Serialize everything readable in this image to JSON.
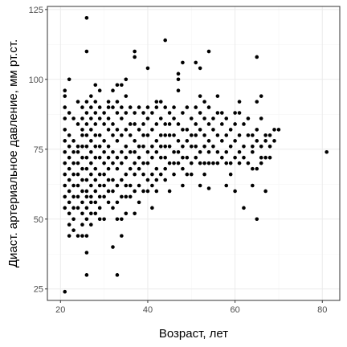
{
  "chart_data": {
    "type": "scatter",
    "xlabel": "Возраст, лет",
    "ylabel": "Диаст. артериальное давление, мм рт.ст.",
    "xlim": [
      17.0,
      84.0
    ],
    "ylim": [
      20.9,
      126.1
    ],
    "x_ticks": [
      20,
      40,
      60,
      80
    ],
    "x_tick_labels": [
      "20",
      "40",
      "60",
      "80"
    ],
    "y_ticks": [
      25,
      50,
      75,
      100,
      125
    ],
    "y_tick_labels": [
      "25",
      "50",
      "75",
      "100",
      "125"
    ],
    "grid": "on",
    "point_color": "#000000",
    "panel_border_color": "#333333",
    "points": [
      [
        26,
        122
      ],
      [
        44,
        114
      ],
      [
        26,
        110
      ],
      [
        37,
        110
      ],
      [
        54,
        110
      ],
      [
        37,
        108
      ],
      [
        65,
        108
      ],
      [
        40,
        104
      ],
      [
        51,
        106
      ],
      [
        52,
        104
      ],
      [
        48,
        106
      ],
      [
        47,
        102
      ],
      [
        47,
        100
      ],
      [
        22,
        100
      ],
      [
        28,
        98
      ],
      [
        33,
        98
      ],
      [
        34,
        98
      ],
      [
        35,
        100
      ],
      [
        47,
        96
      ],
      [
        21,
        96
      ],
      [
        24,
        92
      ],
      [
        27,
        94
      ],
      [
        29,
        96
      ],
      [
        32,
        96
      ],
      [
        35,
        94
      ],
      [
        31,
        90
      ],
      [
        33,
        92
      ],
      [
        42,
        92
      ],
      [
        43,
        92
      ],
      [
        52,
        94
      ],
      [
        53,
        92
      ],
      [
        56,
        94
      ],
      [
        61,
        92
      ],
      [
        65,
        92
      ],
      [
        66,
        94
      ],
      [
        81,
        74
      ],
      [
        70,
        82
      ],
      [
        69,
        82
      ],
      [
        68,
        80
      ],
      [
        67,
        78
      ],
      [
        67,
        72
      ],
      [
        66,
        70
      ],
      [
        65,
        68
      ],
      [
        64,
        62
      ],
      [
        67,
        60
      ],
      [
        62,
        54
      ],
      [
        65,
        50
      ],
      [
        60,
        60
      ],
      [
        54,
        61
      ],
      [
        45,
        60
      ],
      [
        48,
        62
      ],
      [
        58,
        62
      ],
      [
        33,
        50
      ],
      [
        34,
        50
      ],
      [
        34,
        44
      ],
      [
        32,
        40
      ],
      [
        26,
        38
      ],
      [
        26,
        30
      ],
      [
        33,
        30
      ],
      [
        21,
        24
      ],
      [
        22,
        44
      ],
      [
        24,
        44
      ],
      [
        25,
        44
      ],
      [
        26,
        44
      ],
      [
        27,
        48
      ],
      [
        29,
        50
      ],
      [
        30,
        50
      ],
      [
        51,
        72
      ],
      [
        51,
        76
      ],
      [
        53,
        76
      ],
      [
        54,
        78
      ],
      [
        56,
        70
      ],
      [
        58,
        70
      ],
      [
        59,
        66
      ],
      [
        60,
        78
      ],
      [
        61,
        74
      ],
      [
        62,
        72
      ],
      [
        63,
        80
      ],
      [
        64,
        76
      ],
      [
        61,
        88
      ],
      [
        57,
        88
      ],
      [
        55,
        86
      ],
      [
        46,
        70
      ],
      [
        47,
        74
      ],
      [
        49,
        66
      ],
      [
        50,
        80
      ],
      [
        44,
        76
      ],
      [
        45,
        84
      ],
      [
        43,
        80
      ],
      [
        42,
        74
      ],
      [
        48,
        82
      ],
      [
        37,
        70
      ],
      [
        38,
        76
      ],
      [
        39,
        80
      ],
      [
        40,
        74
      ],
      [
        41,
        66
      ],
      [
        39,
        60
      ],
      [
        36,
        62
      ],
      [
        34,
        64
      ],
      [
        38,
        56
      ],
      [
        41,
        54
      ],
      [
        35,
        58
      ],
      [
        35,
        52
      ],
      [
        37,
        52
      ],
      [
        44,
        68
      ],
      [
        46,
        66
      ],
      [
        52,
        62
      ],
      [
        42,
        60
      ],
      [
        40,
        64
      ],
      [
        31,
        60
      ],
      [
        29,
        58
      ],
      [
        27,
        56
      ],
      [
        33,
        56
      ],
      [
        32,
        54
      ],
      [
        30,
        70
      ],
      [
        29,
        76
      ],
      [
        28,
        80
      ],
      [
        27,
        66
      ],
      [
        26,
        60
      ],
      [
        21,
        90
      ],
      [
        22,
        88
      ],
      [
        23,
        86
      ],
      [
        24,
        84
      ],
      [
        25,
        82
      ],
      [
        21,
        82
      ],
      [
        22,
        80
      ],
      [
        23,
        78
      ],
      [
        24,
        76
      ],
      [
        21,
        78
      ],
      [
        22,
        76
      ],
      [
        23,
        74
      ],
      [
        21,
        74
      ],
      [
        24,
        74
      ],
      [
        22,
        72
      ],
      [
        23,
        70
      ],
      [
        21,
        70
      ],
      [
        24,
        70
      ],
      [
        22,
        68
      ],
      [
        23,
        66
      ],
      [
        21,
        66
      ],
      [
        24,
        66
      ],
      [
        22,
        64
      ],
      [
        23,
        62
      ],
      [
        21,
        62
      ],
      [
        24,
        62
      ],
      [
        22,
        60
      ],
      [
        23,
        58
      ],
      [
        21,
        58
      ],
      [
        24,
        58
      ],
      [
        22,
        56
      ],
      [
        23,
        54
      ],
      [
        21,
        54
      ],
      [
        24,
        54
      ],
      [
        22,
        52
      ],
      [
        23,
        50
      ],
      [
        22,
        48
      ],
      [
        23,
        46
      ],
      [
        21,
        86
      ],
      [
        21,
        94
      ],
      [
        25,
        90
      ],
      [
        25,
        86
      ],
      [
        25,
        80
      ],
      [
        25,
        76
      ],
      [
        25,
        72
      ],
      [
        25,
        68
      ],
      [
        25,
        64
      ],
      [
        25,
        60
      ],
      [
        25,
        56
      ],
      [
        25,
        52
      ],
      [
        25,
        48
      ],
      [
        26,
        92
      ],
      [
        26,
        88
      ],
      [
        26,
        84
      ],
      [
        26,
        80
      ],
      [
        26,
        76
      ],
      [
        26,
        72
      ],
      [
        26,
        68
      ],
      [
        26,
        64
      ],
      [
        26,
        58
      ],
      [
        26,
        54
      ],
      [
        26,
        50
      ],
      [
        27,
        90
      ],
      [
        27,
        86
      ],
      [
        27,
        82
      ],
      [
        27,
        78
      ],
      [
        27,
        74
      ],
      [
        27,
        70
      ],
      [
        27,
        62
      ],
      [
        27,
        58
      ],
      [
        27,
        52
      ],
      [
        28,
        92
      ],
      [
        28,
        88
      ],
      [
        28,
        84
      ],
      [
        28,
        76
      ],
      [
        28,
        72
      ],
      [
        28,
        68
      ],
      [
        28,
        64
      ],
      [
        28,
        60
      ],
      [
        28,
        56
      ],
      [
        28,
        52
      ],
      [
        29,
        90
      ],
      [
        29,
        86
      ],
      [
        29,
        80
      ],
      [
        29,
        72
      ],
      [
        29,
        66
      ],
      [
        29,
        62
      ],
      [
        29,
        54
      ],
      [
        30,
        88
      ],
      [
        30,
        84
      ],
      [
        30,
        78
      ],
      [
        30,
        74
      ],
      [
        30,
        66
      ],
      [
        30,
        62
      ],
      [
        30,
        58
      ],
      [
        31,
        92
      ],
      [
        31,
        86
      ],
      [
        31,
        82
      ],
      [
        31,
        76
      ],
      [
        31,
        72
      ],
      [
        31,
        68
      ],
      [
        31,
        64
      ],
      [
        31,
        56
      ],
      [
        32,
        90
      ],
      [
        32,
        84
      ],
      [
        32,
        80
      ],
      [
        32,
        74
      ],
      [
        32,
        70
      ],
      [
        32,
        64
      ],
      [
        32,
        60
      ],
      [
        33,
        88
      ],
      [
        33,
        82
      ],
      [
        33,
        78
      ],
      [
        33,
        72
      ],
      [
        33,
        68
      ],
      [
        33,
        62
      ],
      [
        34,
        90
      ],
      [
        34,
        86
      ],
      [
        34,
        80
      ],
      [
        34,
        74
      ],
      [
        34,
        70
      ],
      [
        34,
        58
      ],
      [
        35,
        88
      ],
      [
        35,
        82
      ],
      [
        35,
        76
      ],
      [
        35,
        72
      ],
      [
        35,
        66
      ],
      [
        35,
        62
      ],
      [
        36,
        90
      ],
      [
        36,
        84
      ],
      [
        36,
        80
      ],
      [
        36,
        74
      ],
      [
        36,
        68
      ],
      [
        36,
        58
      ],
      [
        37,
        88
      ],
      [
        37,
        84
      ],
      [
        37,
        78
      ],
      [
        37,
        74
      ],
      [
        37,
        66
      ],
      [
        37,
        60
      ],
      [
        38,
        90
      ],
      [
        38,
        82
      ],
      [
        38,
        72
      ],
      [
        38,
        68
      ],
      [
        38,
        62
      ],
      [
        39,
        88
      ],
      [
        39,
        84
      ],
      [
        39,
        76
      ],
      [
        39,
        70
      ],
      [
        39,
        66
      ],
      [
        40,
        90
      ],
      [
        40,
        86
      ],
      [
        40,
        80
      ],
      [
        40,
        70
      ],
      [
        40,
        60
      ],
      [
        41,
        88
      ],
      [
        41,
        82
      ],
      [
        41,
        76
      ],
      [
        41,
        72
      ],
      [
        41,
        62
      ],
      [
        42,
        90
      ],
      [
        42,
        84
      ],
      [
        42,
        78
      ],
      [
        42,
        68
      ],
      [
        42,
        64
      ],
      [
        43,
        86
      ],
      [
        43,
        76
      ],
      [
        43,
        72
      ],
      [
        43,
        66
      ],
      [
        44,
        90
      ],
      [
        44,
        84
      ],
      [
        44,
        80
      ],
      [
        44,
        72
      ],
      [
        44,
        64
      ],
      [
        45,
        88
      ],
      [
        45,
        80
      ],
      [
        45,
        76
      ],
      [
        45,
        70
      ],
      [
        46,
        90
      ],
      [
        46,
        86
      ],
      [
        46,
        80
      ],
      [
        46,
        74
      ],
      [
        47,
        84
      ],
      [
        47,
        78
      ],
      [
        47,
        70
      ],
      [
        48,
        88
      ],
      [
        48,
        76
      ],
      [
        48,
        72
      ],
      [
        48,
        68
      ],
      [
        49,
        90
      ],
      [
        49,
        82
      ],
      [
        49,
        78
      ],
      [
        49,
        72
      ],
      [
        50,
        86
      ],
      [
        50,
        76
      ],
      [
        50,
        70
      ],
      [
        50,
        66
      ],
      [
        51,
        90
      ],
      [
        51,
        84
      ],
      [
        51,
        80
      ],
      [
        52,
        88
      ],
      [
        52,
        82
      ],
      [
        52,
        74
      ],
      [
        52,
        70
      ],
      [
        53,
        86
      ],
      [
        53,
        80
      ],
      [
        53,
        70
      ],
      [
        53,
        66
      ],
      [
        54,
        90
      ],
      [
        54,
        84
      ],
      [
        54,
        74
      ],
      [
        54,
        70
      ],
      [
        55,
        82
      ],
      [
        55,
        76
      ],
      [
        55,
        70
      ],
      [
        56,
        88
      ],
      [
        56,
        80
      ],
      [
        56,
        74
      ],
      [
        57,
        84
      ],
      [
        57,
        78
      ],
      [
        57,
        72
      ],
      [
        58,
        86
      ],
      [
        58,
        80
      ],
      [
        58,
        74
      ],
      [
        59,
        82
      ],
      [
        59,
        76
      ],
      [
        59,
        70
      ],
      [
        60,
        88
      ],
      [
        60,
        84
      ],
      [
        60,
        72
      ],
      [
        61,
        80
      ],
      [
        61,
        70
      ],
      [
        62,
        84
      ],
      [
        62,
        76
      ],
      [
        63,
        86
      ],
      [
        63,
        70
      ],
      [
        64,
        80
      ],
      [
        64,
        74
      ],
      [
        64,
        68
      ],
      [
        65,
        82
      ],
      [
        65,
        78
      ],
      [
        66,
        86
      ],
      [
        66,
        76
      ],
      [
        66,
        72
      ],
      [
        67,
        80
      ],
      [
        68,
        76
      ],
      [
        69,
        78
      ],
      [
        68,
        72
      ]
    ]
  }
}
